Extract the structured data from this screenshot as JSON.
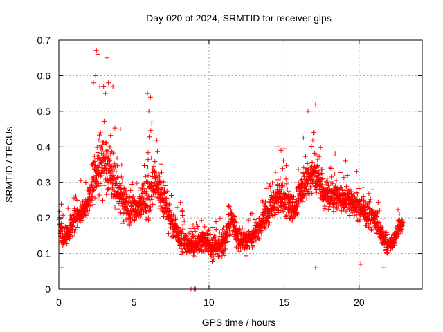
{
  "chart_data": {
    "type": "scatter",
    "title": "Day 020 of 2024, SRMTID for receiver glps",
    "xlabel": "GPS time / hours",
    "ylabel": "SRMTID / TECUs",
    "xlim": [
      0,
      24.2
    ],
    "ylim": [
      0,
      0.7
    ],
    "xticks": [
      0,
      5,
      10,
      15,
      20
    ],
    "xtick_labels": [
      "0",
      "5",
      "10",
      "15",
      "20"
    ],
    "yticks": [
      0,
      0.1,
      0.2,
      0.3,
      0.4,
      0.5,
      0.6,
      0.7
    ],
    "ytick_labels": [
      "0",
      "0.1",
      "0.2",
      "0.3",
      "0.4",
      "0.5",
      "0.6",
      "0.7"
    ],
    "grid": true,
    "marker": "plus",
    "color": "#ff0000",
    "series": [
      {
        "name": "glps",
        "profile_x": [
          0,
          0.3,
          0.7,
          1.2,
          1.8,
          2.2,
          2.6,
          3.0,
          3.3,
          3.7,
          4.1,
          4.6,
          5.0,
          5.5,
          6.0,
          6.4,
          6.9,
          7.4,
          7.9,
          8.4,
          8.8,
          9.3,
          9.7,
          10.2,
          10.6,
          11.0,
          11.5,
          11.9,
          12.3,
          12.8,
          13.3,
          13.7,
          14.1,
          14.5,
          14.9,
          15.3,
          15.7,
          16.1,
          16.5,
          16.9,
          17.3,
          17.7,
          18.2,
          18.7,
          19.2,
          19.7,
          20.2,
          20.7,
          21.1,
          21.5,
          21.9,
          22.3,
          22.9
        ],
        "profile_y": [
          0.18,
          0.14,
          0.17,
          0.2,
          0.23,
          0.28,
          0.33,
          0.36,
          0.34,
          0.3,
          0.26,
          0.22,
          0.21,
          0.24,
          0.27,
          0.3,
          0.26,
          0.2,
          0.15,
          0.13,
          0.12,
          0.13,
          0.14,
          0.12,
          0.11,
          0.13,
          0.2,
          0.14,
          0.13,
          0.14,
          0.17,
          0.2,
          0.23,
          0.25,
          0.26,
          0.24,
          0.22,
          0.28,
          0.3,
          0.33,
          0.3,
          0.27,
          0.27,
          0.25,
          0.25,
          0.24,
          0.22,
          0.21,
          0.19,
          0.15,
          0.12,
          0.14,
          0.19
        ],
        "profile_spread": [
          0.05,
          0.05,
          0.05,
          0.05,
          0.06,
          0.12,
          0.15,
          0.15,
          0.13,
          0.1,
          0.09,
          0.08,
          0.08,
          0.09,
          0.12,
          0.1,
          0.08,
          0.06,
          0.06,
          0.06,
          0.06,
          0.06,
          0.06,
          0.06,
          0.05,
          0.05,
          0.06,
          0.05,
          0.05,
          0.05,
          0.05,
          0.06,
          0.07,
          0.07,
          0.08,
          0.07,
          0.07,
          0.08,
          0.1,
          0.1,
          0.08,
          0.07,
          0.07,
          0.06,
          0.06,
          0.06,
          0.06,
          0.06,
          0.06,
          0.05,
          0.04,
          0.04,
          0.04
        ],
        "n_points": 2600,
        "peaks": [
          {
            "x": 2.5,
            "y": 0.67
          },
          {
            "x": 2.6,
            "y": 0.66
          },
          {
            "x": 2.45,
            "y": 0.6
          },
          {
            "x": 2.3,
            "y": 0.58
          },
          {
            "x": 3.2,
            "y": 0.65
          },
          {
            "x": 3.3,
            "y": 0.58
          },
          {
            "x": 3.1,
            "y": 0.55
          },
          {
            "x": 3.6,
            "y": 0.57
          },
          {
            "x": 4.1,
            "y": 0.45
          },
          {
            "x": 5.9,
            "y": 0.55
          },
          {
            "x": 6.1,
            "y": 0.54
          },
          {
            "x": 6.0,
            "y": 0.5
          },
          {
            "x": 6.2,
            "y": 0.47
          },
          {
            "x": 8.8,
            "y": 0.0
          },
          {
            "x": 9.0,
            "y": 0.0
          },
          {
            "x": 9.1,
            "y": 0.0
          },
          {
            "x": 14.6,
            "y": 0.4
          },
          {
            "x": 14.8,
            "y": 0.39
          },
          {
            "x": 16.6,
            "y": 0.5
          },
          {
            "x": 17.1,
            "y": 0.52
          },
          {
            "x": 17.0,
            "y": 0.44
          },
          {
            "x": 17.1,
            "y": 0.06
          },
          {
            "x": 18.4,
            "y": 0.38
          },
          {
            "x": 19.1,
            "y": 0.36
          },
          {
            "x": 20.1,
            "y": 0.07
          },
          {
            "x": 0.2,
            "y": 0.06
          },
          {
            "x": 21.6,
            "y": 0.06
          }
        ]
      }
    ]
  }
}
